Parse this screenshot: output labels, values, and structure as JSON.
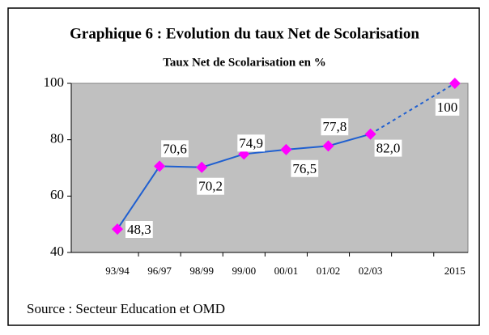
{
  "chart_data": {
    "type": "line",
    "title": "Graphique 6 : Evolution du taux Net de Scolarisation",
    "subtitle": "Taux Net de Scolarisation en %",
    "categories": [
      "93/94",
      "96/97",
      "98/99",
      "99/00",
      "00/01",
      "01/02",
      "02/03",
      null,
      "2015"
    ],
    "values": [
      48.3,
      70.6,
      70.2,
      74.9,
      76.5,
      77.8,
      82.0,
      null,
      100
    ],
    "value_labels": [
      "48,3",
      "70,6",
      "70,2",
      "74,9",
      "76,5",
      "77,8",
      "82,0",
      null,
      "100"
    ],
    "color": "#1f5fd0",
    "marker_color": "#ff00ff",
    "ylim": [
      40,
      100
    ],
    "yticks": [
      40,
      60,
      80,
      100
    ],
    "plot_background": "#c0c0c0",
    "source": "Source : Secteur Education et OMD"
  }
}
